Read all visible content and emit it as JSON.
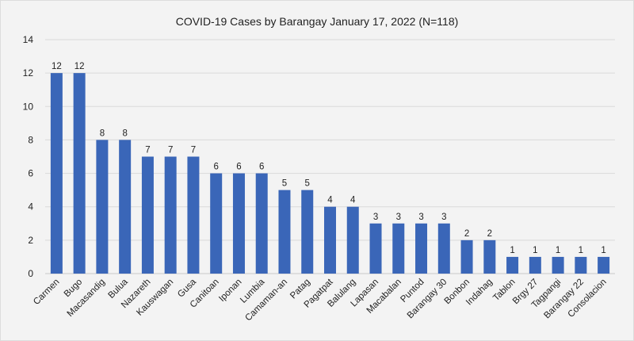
{
  "chart_data": {
    "type": "bar",
    "title": "COVID-19 Cases by Barangay January 17, 2022 (N=118)",
    "xlabel": "",
    "ylabel": "",
    "ylim": [
      0,
      14
    ],
    "yticks": [
      0,
      2,
      4,
      6,
      8,
      10,
      12,
      14
    ],
    "grid": true,
    "bar_color": "#3a66b8",
    "categories": [
      "Carmen",
      "Bugo",
      "Macasandig",
      "Bulua",
      "Nazareth",
      "Kauswagan",
      "Gusa",
      "Canitoan",
      "Iponan",
      "Lumbia",
      "Camaman-an",
      "Patag",
      "Pagatpat",
      "Balulang",
      "Lapasan",
      "Macabalan",
      "Puntod",
      "Barangay 30",
      "Bonbon",
      "Indahag",
      "Tablon",
      "Brgy 27",
      "Tagpangi",
      "Barangay 22",
      "Consolacion"
    ],
    "values": [
      12,
      12,
      8,
      8,
      7,
      7,
      7,
      6,
      6,
      6,
      5,
      5,
      4,
      4,
      3,
      3,
      3,
      3,
      2,
      2,
      1,
      1,
      1,
      1,
      1
    ]
  }
}
